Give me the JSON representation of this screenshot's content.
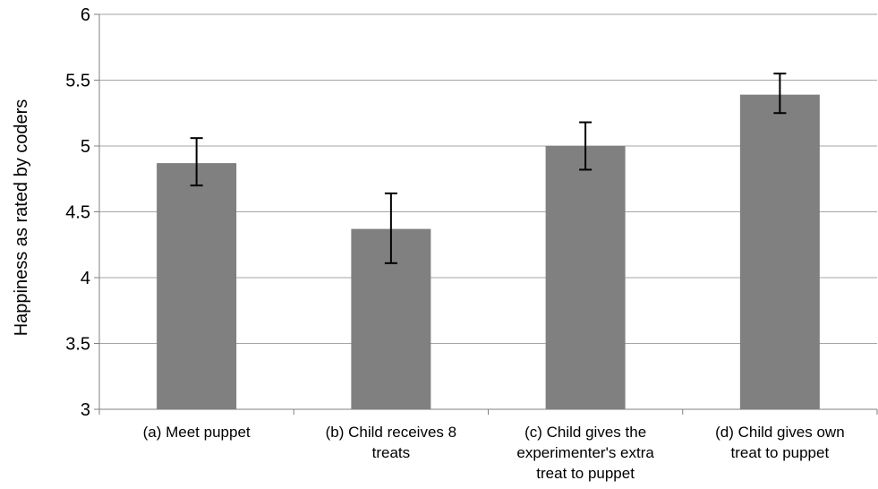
{
  "chart_data": {
    "type": "bar",
    "title": "",
    "xlabel": "",
    "ylabel": "Happiness as rated by coders",
    "ylim": [
      3,
      6
    ],
    "yticks": [
      3,
      3.5,
      4,
      4.5,
      5,
      5.5,
      6
    ],
    "ytick_labels": [
      "3",
      "3.5",
      "4",
      "4.5",
      "5",
      "5.5",
      "6"
    ],
    "grid": true,
    "legend": "none",
    "categories": [
      [
        "(a) Meet puppet"
      ],
      [
        "(b) Child receives 8",
        "treats"
      ],
      [
        "(c) Child gives the",
        "experimenter's extra",
        "treat to puppet"
      ],
      [
        "(d) Child gives own",
        "treat to puppet"
      ]
    ],
    "values": [
      4.87,
      4.37,
      5.0,
      5.39
    ],
    "error_bars": [
      {
        "low": 4.7,
        "high": 5.06
      },
      {
        "low": 4.11,
        "high": 4.64
      },
      {
        "low": 4.82,
        "high": 5.18
      },
      {
        "low": 5.25,
        "high": 5.55
      }
    ],
    "colors": {
      "bar": "#808080",
      "grid": "#a6a6a6",
      "axis": "#808080",
      "error_bar": "#000000"
    }
  }
}
